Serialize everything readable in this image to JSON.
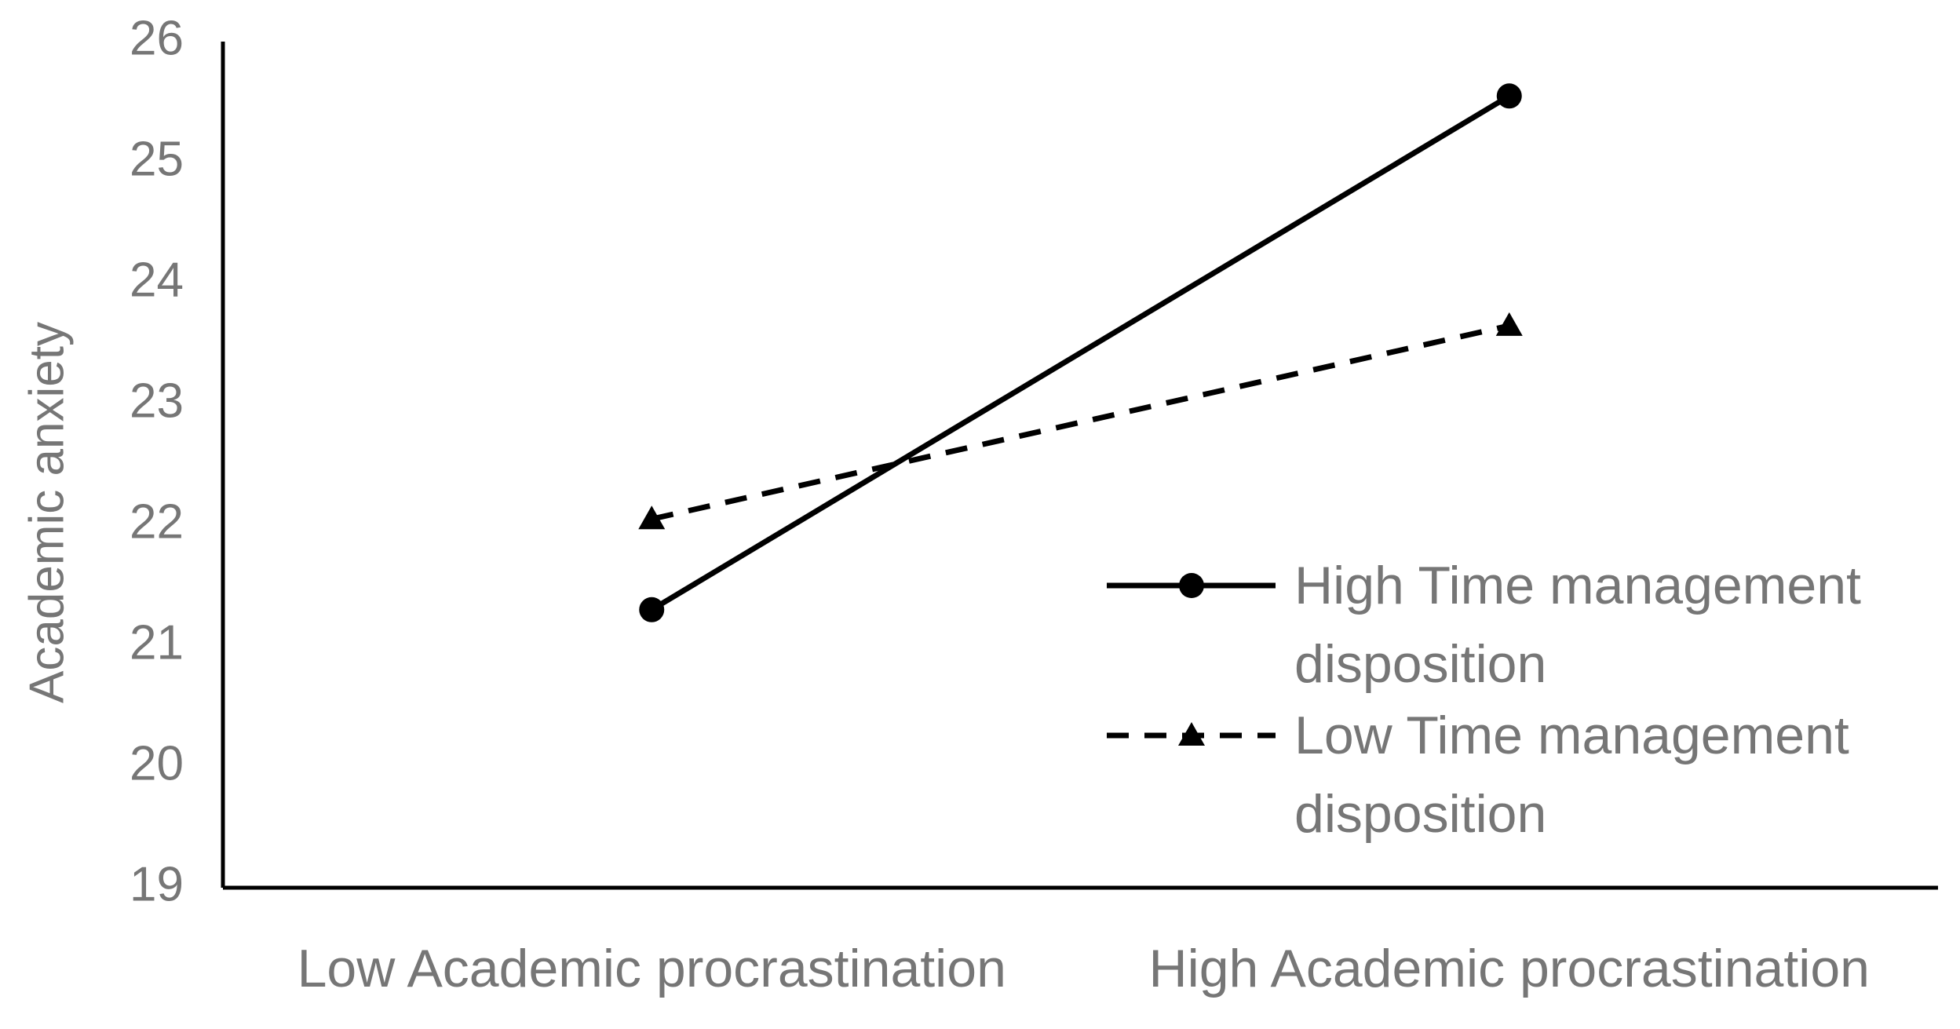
{
  "chart_data": {
    "type": "line",
    "y_label": "Academic anxiety",
    "categories": [
      "Low Academic procrastination",
      "High Academic procrastination"
    ],
    "series": [
      {
        "name": "High Time management disposition",
        "color": "#000000",
        "marker": "circle",
        "dash": "solid",
        "values": [
          21.3,
          25.55
        ]
      },
      {
        "name": "Low Time management disposition",
        "color": "#000000",
        "marker": "triangle",
        "dash": "dashed",
        "values": [
          22.05,
          23.65
        ]
      }
    ],
    "ylim": [
      19,
      26
    ],
    "yticks": [
      19,
      20,
      21,
      22,
      23,
      24,
      25,
      26
    ],
    "grid": false,
    "legend": "right"
  }
}
